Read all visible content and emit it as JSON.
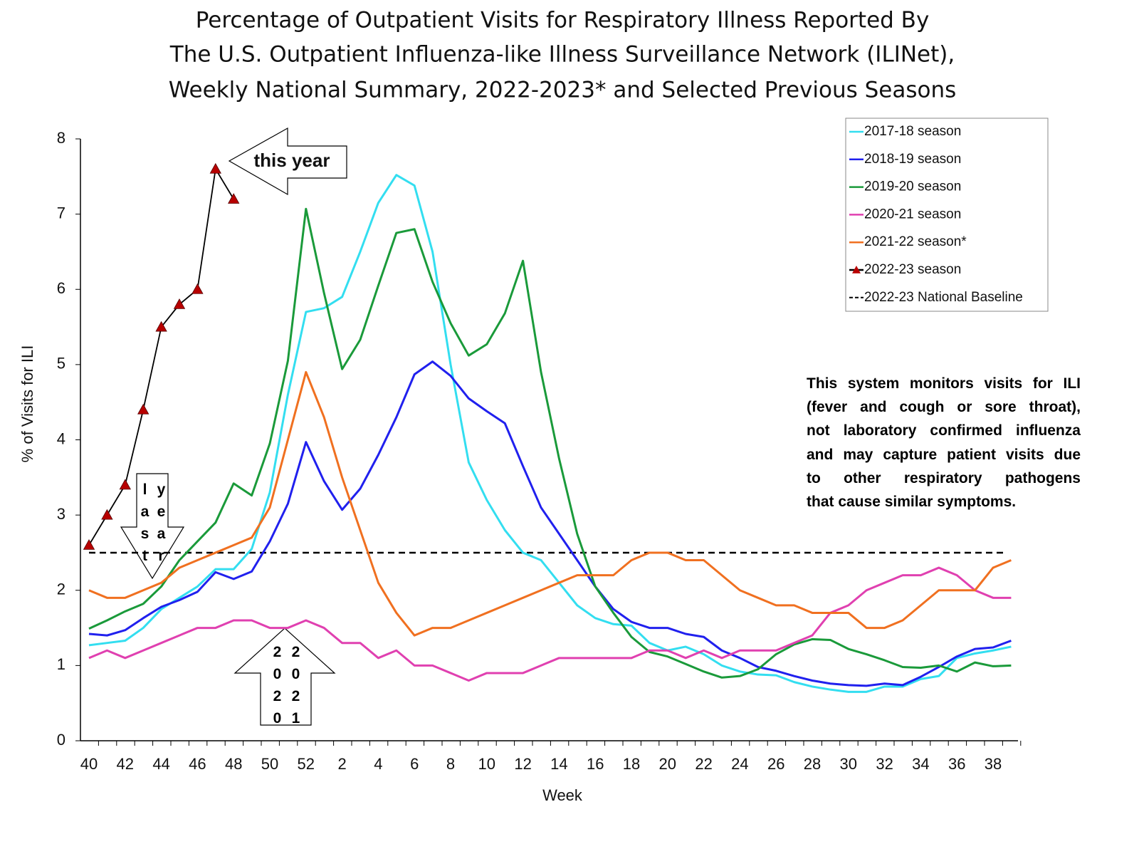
{
  "chart_data": {
    "type": "line",
    "title": [
      "Percentage of Outpatient Visits for Respiratory Illness Reported By",
      "The U.S. Outpatient Influenza-like Illness Surveillance Network (ILINet),",
      "Weekly National Summary, 2022-2023* and Selected Previous Seasons"
    ],
    "x_label": "Week",
    "y_label": "% of Visits for ILI",
    "categories": [
      "40",
      null,
      "42",
      null,
      "44",
      null,
      "46",
      null,
      "48",
      null,
      "50",
      null,
      "52",
      null,
      "2",
      null,
      "4",
      null,
      "6",
      null,
      "8",
      null,
      "10",
      null,
      "12",
      null,
      "14",
      null,
      "16",
      null,
      "18",
      null,
      "20",
      null,
      "22",
      null,
      "24",
      null,
      "26",
      null,
      "28",
      null,
      "30",
      null,
      "32",
      null,
      "34",
      null,
      "36",
      null,
      "38",
      null
    ],
    "ylim": [
      0,
      8
    ],
    "yticks": [
      0,
      1,
      2,
      3,
      4,
      5,
      6,
      7,
      8
    ],
    "legend": "upper right",
    "series": [
      {
        "name": "2017-18 season",
        "color": "#33def0",
        "values": [
          1.27,
          1.3,
          1.33,
          1.5,
          1.75,
          1.9,
          2.05,
          2.28,
          2.28,
          2.55,
          3.3,
          4.6,
          5.7,
          5.75,
          5.9,
          6.5,
          7.15,
          7.52,
          7.38,
          6.5,
          5.0,
          3.7,
          3.2,
          2.8,
          2.5,
          2.4,
          2.1,
          1.8,
          1.63,
          1.55,
          1.53,
          1.3,
          1.2,
          1.25,
          1.15,
          1.0,
          0.92,
          0.88,
          0.87,
          0.78,
          0.72,
          0.68,
          0.65,
          0.65,
          0.72,
          0.72,
          0.82,
          0.86,
          1.1,
          1.16,
          1.2,
          1.25
        ]
      },
      {
        "name": "2018-19 season",
        "color": "#2020ee",
        "values": [
          1.42,
          1.4,
          1.47,
          1.63,
          1.78,
          1.87,
          1.98,
          2.24,
          2.15,
          2.25,
          2.65,
          3.15,
          3.97,
          3.45,
          3.07,
          3.35,
          3.8,
          4.3,
          4.87,
          5.04,
          4.85,
          4.55,
          4.38,
          4.22,
          3.65,
          3.1,
          2.75,
          2.4,
          2.05,
          1.75,
          1.58,
          1.5,
          1.5,
          1.42,
          1.38,
          1.2,
          1.1,
          0.98,
          0.93,
          0.86,
          0.8,
          0.76,
          0.74,
          0.73,
          0.76,
          0.74,
          0.85,
          0.98,
          1.12,
          1.22,
          1.24,
          1.33
        ]
      },
      {
        "name": "2019-20 season",
        "color": "#1a9a3a",
        "values": [
          1.49,
          1.6,
          1.72,
          1.82,
          2.05,
          2.4,
          2.65,
          2.9,
          3.42,
          3.26,
          3.95,
          5.05,
          7.07,
          5.95,
          4.94,
          5.33,
          6.05,
          6.75,
          6.8,
          6.1,
          5.55,
          5.12,
          5.27,
          5.68,
          6.38,
          4.9,
          3.75,
          2.75,
          2.05,
          1.7,
          1.38,
          1.18,
          1.12,
          1.02,
          0.92,
          0.84,
          0.86,
          0.95,
          1.15,
          1.28,
          1.35,
          1.34,
          1.22,
          1.15,
          1.07,
          0.98,
          0.97,
          1.0,
          0.92,
          1.04,
          0.99,
          1.0
        ]
      },
      {
        "name": "2020-21 season",
        "color": "#e040b0",
        "values": [
          1.1,
          1.2,
          1.1,
          1.2,
          1.3,
          1.4,
          1.5,
          1.5,
          1.6,
          1.6,
          1.5,
          1.5,
          1.6,
          1.5,
          1.3,
          1.3,
          1.1,
          1.2,
          1.0,
          1.0,
          0.9,
          0.8,
          0.9,
          0.9,
          0.9,
          1.0,
          1.1,
          1.1,
          1.1,
          1.1,
          1.1,
          1.2,
          1.2,
          1.1,
          1.2,
          1.1,
          1.2,
          1.2,
          1.2,
          1.3,
          1.4,
          1.7,
          1.8,
          2.0,
          2.1,
          2.2,
          2.2,
          2.3,
          2.2,
          2.0,
          1.9,
          1.9
        ]
      },
      {
        "name": "2021-22 season*",
        "color": "#f07020",
        "values": [
          2.0,
          1.9,
          1.9,
          2.0,
          2.1,
          2.3,
          2.4,
          2.5,
          2.6,
          2.7,
          3.1,
          4.0,
          4.9,
          4.3,
          3.5,
          2.8,
          2.1,
          1.7,
          1.4,
          1.5,
          1.5,
          1.6,
          1.7,
          1.8,
          1.9,
          2.0,
          2.1,
          2.2,
          2.2,
          2.2,
          2.4,
          2.5,
          2.5,
          2.4,
          2.4,
          2.2,
          2.0,
          1.9,
          1.8,
          1.8,
          1.7,
          1.7,
          1.7,
          1.5,
          1.5,
          1.6,
          1.8,
          2.0,
          2.0,
          2.0,
          2.3,
          2.4
        ]
      },
      {
        "name": "2022-23 season",
        "color": "#000000",
        "marker_color": "#b80000",
        "values": [
          2.6,
          3.0,
          3.4,
          4.4,
          5.5,
          5.8,
          6.0,
          7.6,
          7.2,
          null,
          null,
          null,
          null,
          null,
          null,
          null,
          null,
          null,
          null,
          null,
          null,
          null,
          null,
          null,
          null,
          null,
          null,
          null,
          null,
          null,
          null,
          null,
          null,
          null,
          null,
          null,
          null,
          null,
          null,
          null,
          null,
          null,
          null,
          null,
          null,
          null,
          null,
          null,
          null,
          null,
          null,
          null
        ]
      }
    ],
    "baseline": {
      "name": "2022-23 National Baseline",
      "value": 2.5,
      "color": "#000000"
    },
    "annotations": {
      "this_year": "this year",
      "last_year": [
        "last",
        "year"
      ],
      "season_2020": [
        "2020",
        "2021"
      ]
    },
    "note": [
      "This system monitors visits for ILI",
      "(fever and cough or sore throat),",
      "not laboratory confirmed influenza",
      "and may capture patient visits due",
      "to other respiratory pathogens",
      "that cause similar symptoms."
    ]
  }
}
